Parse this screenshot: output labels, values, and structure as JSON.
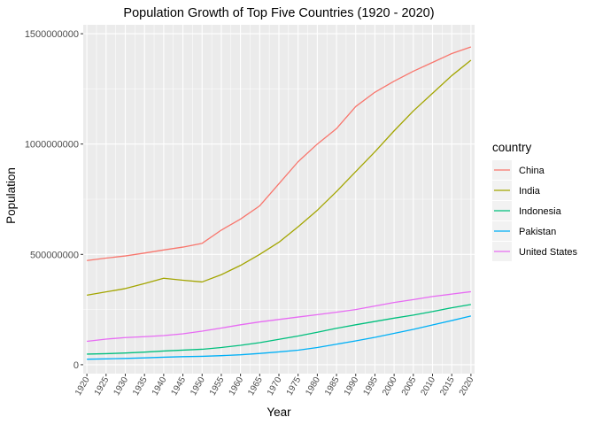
{
  "chart_data": {
    "type": "line",
    "title": "Population Growth of Top Five Countries (1920 - 2020)",
    "xlabel": "Year",
    "ylabel": "Population",
    "xlim": [
      1920,
      2020
    ],
    "ylim": [
      0,
      1500000000
    ],
    "x_ticks": [
      1920,
      1925,
      1930,
      1935,
      1940,
      1945,
      1950,
      1955,
      1960,
      1965,
      1970,
      1975,
      1980,
      1985,
      1990,
      1995,
      2000,
      2005,
      2010,
      2015,
      2020
    ],
    "y_ticks": [
      0,
      500000000,
      1000000000,
      1500000000
    ],
    "y_tick_labels": [
      "0",
      "500000000",
      "1000000000",
      "1500000000"
    ],
    "grid": true,
    "legend": {
      "title": "country",
      "position": "right"
    },
    "x": [
      1920,
      1925,
      1930,
      1935,
      1940,
      1945,
      1950,
      1955,
      1960,
      1965,
      1970,
      1975,
      1980,
      1985,
      1990,
      1995,
      2000,
      2005,
      2010,
      2015,
      2020
    ],
    "series": [
      {
        "name": "China",
        "color": "#F8766D",
        "values": [
          472000000,
          483000000,
          493000000,
          506000000,
          520000000,
          533000000,
          550000000,
          610000000,
          660000000,
          720000000,
          820000000,
          920000000,
          1000000000,
          1070000000,
          1170000000,
          1235000000,
          1285000000,
          1330000000,
          1370000000,
          1410000000,
          1440000000
        ]
      },
      {
        "name": "India",
        "color": "#A3A500",
        "values": [
          315000000,
          330000000,
          345000000,
          368000000,
          392000000,
          383000000,
          375000000,
          408000000,
          450000000,
          500000000,
          555000000,
          625000000,
          700000000,
          785000000,
          875000000,
          965000000,
          1060000000,
          1150000000,
          1230000000,
          1310000000,
          1380000000
        ]
      },
      {
        "name": "Indonesia",
        "color": "#00BF7D",
        "values": [
          48000000,
          50000000,
          53000000,
          57000000,
          62000000,
          66000000,
          70000000,
          78000000,
          88000000,
          100000000,
          115000000,
          130000000,
          147000000,
          165000000,
          181000000,
          196000000,
          211000000,
          225000000,
          241000000,
          258000000,
          273000000
        ]
      },
      {
        "name": "Pakistan",
        "color": "#00B0F6",
        "values": [
          25000000,
          26500000,
          28500000,
          31000000,
          34000000,
          36500000,
          38000000,
          41000000,
          45000000,
          51000000,
          58000000,
          66000000,
          78000000,
          93000000,
          108000000,
          124000000,
          142000000,
          160000000,
          180000000,
          200000000,
          221000000
        ]
      },
      {
        "name": "United States",
        "color": "#E76BF3",
        "values": [
          106000000,
          116000000,
          123000000,
          127000000,
          132000000,
          140000000,
          152000000,
          166000000,
          181000000,
          194000000,
          205000000,
          216000000,
          227000000,
          238000000,
          250000000,
          266000000,
          282000000,
          295000000,
          309000000,
          320000000,
          331000000
        ]
      }
    ]
  }
}
